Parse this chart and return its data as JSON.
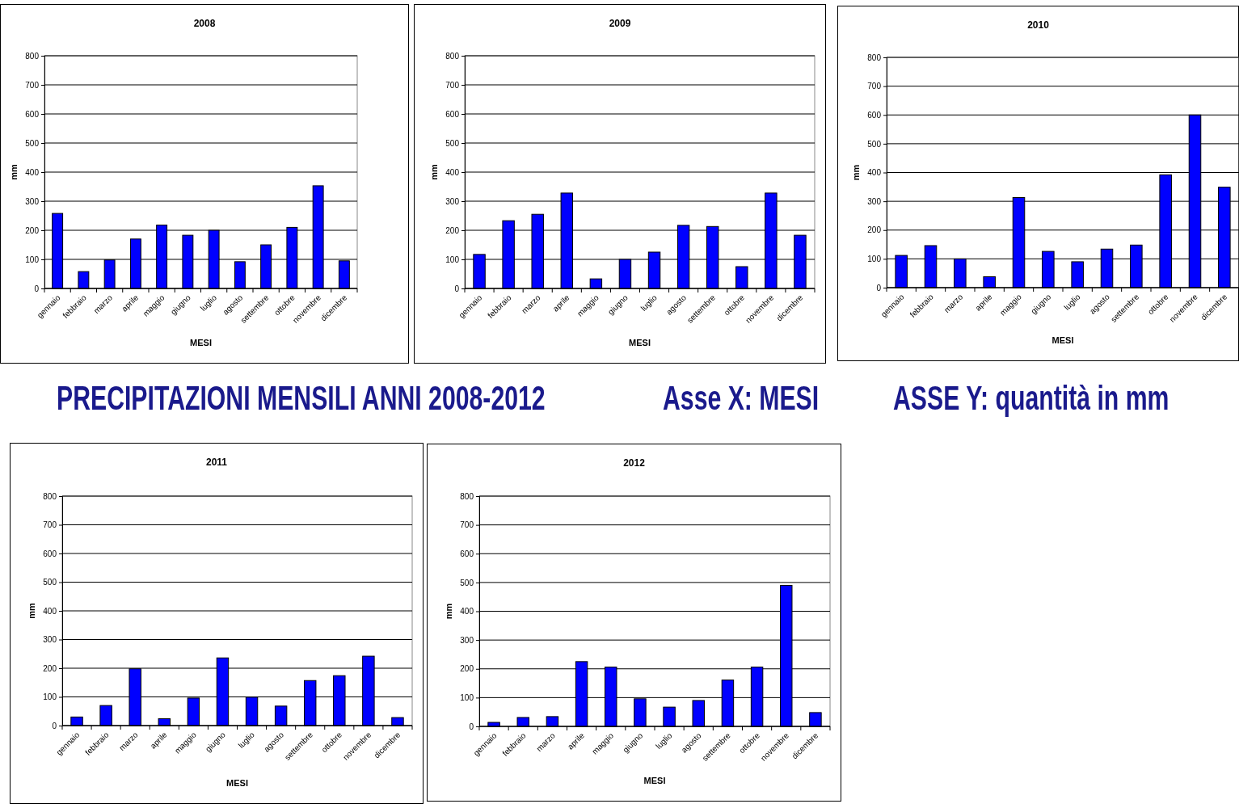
{
  "chart_data": [
    {
      "type": "bar",
      "title": "2008",
      "xlabel": "MESI",
      "ylabel": "mm",
      "categories": [
        "gennaio",
        "febbraio",
        "marzo",
        "aprile",
        "maggio",
        "giugno",
        "luglio",
        "agosto",
        "settembre",
        "ottobre",
        "novembre",
        "dicembre"
      ],
      "values": [
        258,
        58,
        98,
        170,
        218,
        183,
        200,
        92,
        150,
        210,
        353,
        95
      ],
      "color": "#0000ff",
      "ylim": [
        0,
        800
      ],
      "yticks": [
        0,
        100,
        200,
        300,
        400,
        500,
        600,
        700,
        800
      ],
      "grid": "y"
    },
    {
      "type": "bar",
      "title": "2009",
      "xlabel": "MESI",
      "ylabel": "mm",
      "categories": [
        "gennaio",
        "febbraio",
        "marzo",
        "aprile",
        "maggio",
        "giugno",
        "luglio",
        "agosto",
        "settembre",
        "ottobre",
        "novembre",
        "dicembre"
      ],
      "values": [
        117,
        233,
        255,
        328,
        33,
        100,
        125,
        217,
        213,
        75,
        328,
        183
      ],
      "color": "#0000ff",
      "ylim": [
        0,
        800
      ],
      "yticks": [
        0,
        100,
        200,
        300,
        400,
        500,
        600,
        700,
        800
      ],
      "grid": "y"
    },
    {
      "type": "bar",
      "title": "2010",
      "xlabel": "MESI",
      "ylabel": "mm",
      "categories": [
        "gennaio",
        "febbraio",
        "marzo",
        "aprile",
        "maggio",
        "giugno",
        "luglio",
        "agosto",
        "settembre",
        "ottobre",
        "novembre",
        "dicembre"
      ],
      "values": [
        112,
        146,
        100,
        38,
        313,
        126,
        90,
        134,
        148,
        392,
        600,
        349
      ],
      "color": "#0000ff",
      "ylim": [
        0,
        800
      ],
      "yticks": [
        0,
        100,
        200,
        300,
        400,
        500,
        600,
        700,
        800
      ],
      "grid": "y"
    },
    {
      "type": "other",
      "annotations": [
        "PRECIPITAZIONI MENSILI ANNI 2008-2012",
        "Asse X: MESI",
        "ASSE Y: quantità in mm"
      ]
    },
    {
      "type": "bar",
      "title": "2011",
      "xlabel": "MESI",
      "ylabel": "mm",
      "categories": [
        "gennaio",
        "febbraio",
        "marzo",
        "aprile",
        "maggio",
        "giugno",
        "luglio",
        "agosto",
        "settembre",
        "ottobre",
        "novembre",
        "dicembre"
      ],
      "values": [
        30,
        70,
        198,
        24,
        96,
        236,
        99,
        68,
        157,
        174,
        242,
        28
      ],
      "color": "#0000ff",
      "ylim": [
        0,
        800
      ],
      "yticks": [
        0,
        100,
        200,
        300,
        400,
        500,
        600,
        700,
        800
      ],
      "grid": "y"
    },
    {
      "type": "bar",
      "title": "2012",
      "xlabel": "MESI",
      "ylabel": "mm",
      "categories": [
        "gennaio",
        "febbraio",
        "marzo",
        "aprile",
        "maggio",
        "giugno",
        "luglio",
        "agosto",
        "settembre",
        "ottobre",
        "novembre",
        "dicembre"
      ],
      "values": [
        14,
        31,
        34,
        225,
        206,
        96,
        67,
        90,
        161,
        206,
        490,
        48
      ],
      "color": "#0000ff",
      "ylim": [
        0,
        800
      ],
      "yticks": [
        0,
        100,
        200,
        300,
        400,
        500,
        600,
        700,
        800
      ],
      "grid": "y"
    }
  ]
}
